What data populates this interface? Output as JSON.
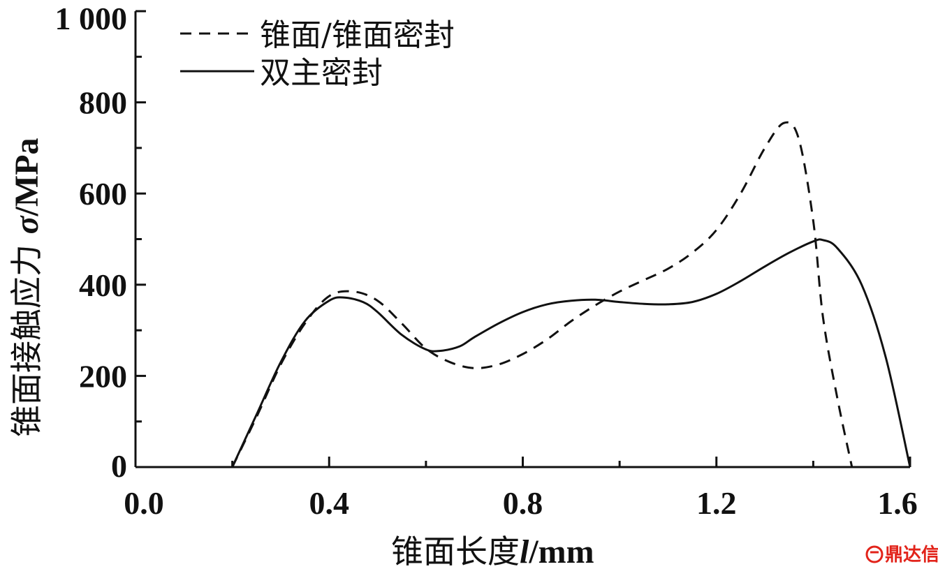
{
  "chart_data": {
    "type": "line",
    "title": "",
    "xlabel": {
      "prefix": "锥面长度",
      "symbol": "l",
      "unit": "/mm"
    },
    "ylabel": {
      "prefix": "锥面接触应力 ",
      "symbol": "σ",
      "unit": "/MPa"
    },
    "xlim": [
      0.0,
      1.6
    ],
    "ylim": [
      0,
      1000
    ],
    "x_ticks": [
      "0.0",
      "0.4",
      "0.8",
      "1.2",
      "1.6"
    ],
    "y_ticks": [
      "0",
      "200",
      "400",
      "600",
      "800",
      "1 000"
    ],
    "x_tick_values": [
      0.0,
      0.4,
      0.8,
      1.2,
      1.6
    ],
    "y_tick_values": [
      0,
      200,
      400,
      600,
      800,
      1000
    ],
    "x_minor_step": 0.2,
    "y_minor_step": 100,
    "grid": false,
    "legend_position": "top-left",
    "series": [
      {
        "name": "锥面/锥面密封",
        "style": "dashed",
        "color": "#111111",
        "x": [
          0.2,
          0.25,
          0.3,
          0.35,
          0.4,
          0.45,
          0.5,
          0.55,
          0.6,
          0.65,
          0.7,
          0.75,
          0.8,
          0.85,
          0.9,
          0.95,
          1.0,
          1.05,
          1.1,
          1.15,
          1.2,
          1.25,
          1.3,
          1.34,
          1.37,
          1.4,
          1.42,
          1.45,
          1.48
        ],
        "y": [
          0,
          110,
          225,
          315,
          375,
          385,
          365,
          315,
          260,
          230,
          217,
          225,
          248,
          280,
          320,
          355,
          385,
          410,
          435,
          470,
          520,
          600,
          700,
          755,
          720,
          540,
          330,
          150,
          0
        ]
      },
      {
        "name": "双主密封",
        "style": "solid",
        "color": "#111111",
        "x": [
          0.2,
          0.25,
          0.3,
          0.35,
          0.4,
          0.43,
          0.47,
          0.5,
          0.55,
          0.6,
          0.63,
          0.67,
          0.7,
          0.75,
          0.8,
          0.85,
          0.9,
          0.95,
          1.0,
          1.05,
          1.1,
          1.15,
          1.2,
          1.25,
          1.3,
          1.35,
          1.4,
          1.42,
          1.45,
          1.5,
          1.55,
          1.6
        ],
        "y": [
          0,
          115,
          230,
          320,
          365,
          372,
          362,
          340,
          290,
          258,
          255,
          265,
          285,
          315,
          340,
          357,
          365,
          367,
          362,
          358,
          357,
          362,
          380,
          408,
          440,
          470,
          495,
          498,
          480,
          400,
          240,
          0
        ]
      }
    ]
  },
  "watermark": {
    "text": "鼎达信",
    "color": "#e2231a"
  }
}
